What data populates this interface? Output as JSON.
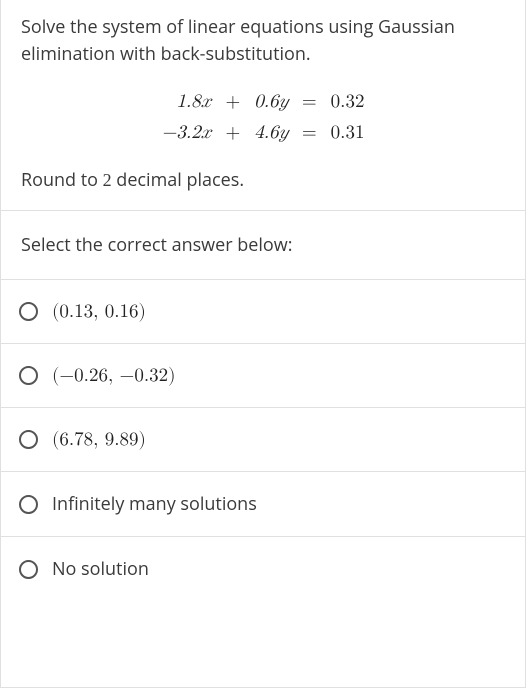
{
  "problem_text": "Solve the system of linear equations using Gaussian elimination with back-substitution.",
  "equations": {
    "row1": {
      "ax": "1.8𝑥",
      "op1": "+",
      "by": "0.6𝑦",
      "eq": "=",
      "rhs": "0.32"
    },
    "row2": {
      "ax": "−3.2𝑥",
      "op1": "+",
      "by": "4.6𝑦",
      "eq": "=",
      "rhs": "0.31"
    }
  },
  "round_prefix": "Round to ",
  "round_n": "2",
  "round_suffix": " decimal places.",
  "select_prompt": "Select the correct answer below:",
  "options": {
    "a": "(0.13, 0.16)",
    "b": "(−0.26, −0.32)",
    "c": "(6.78, 9.89)",
    "d": "Infinitely many solutions",
    "e": "No solution"
  },
  "style": {
    "body_font_size": 18,
    "math_font_size": 19,
    "text_color": "#3a3a3a",
    "math_color": "#222222",
    "border_color": "#e0e0e0",
    "radio_border": "#555555",
    "background": "#ffffff"
  }
}
